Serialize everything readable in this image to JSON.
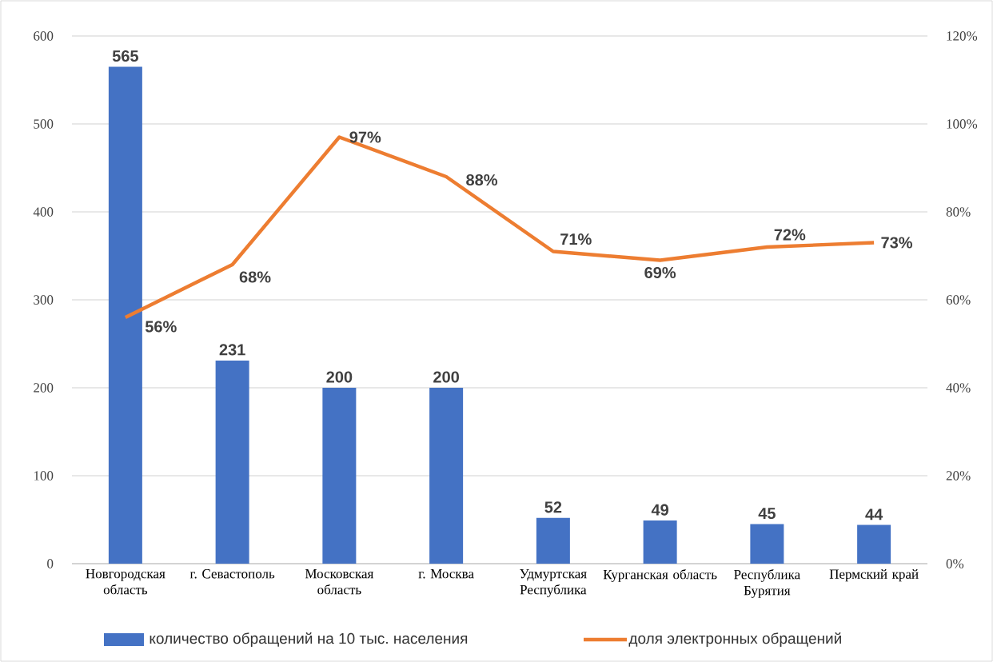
{
  "chart_data": {
    "type": "bar",
    "categories": [
      "Новгородская область",
      "г. Севастополь",
      "Московская область",
      "г. Москва",
      "Удмуртская Республика",
      "Курганская область",
      "Республика Бурятия",
      "Пермский край"
    ],
    "series": [
      {
        "name": "количество обращений на 10 тыс. населения",
        "color": "#4472c4",
        "values": [
          565,
          231,
          200,
          200,
          52,
          49,
          45,
          44
        ],
        "value_labels": [
          "565",
          "231",
          "200",
          "200",
          "52",
          "49",
          "45",
          "44"
        ]
      },
      {
        "name": "доля электронных обращений",
        "type": "line",
        "axis": "y2",
        "color": "#ed7d31",
        "values": [
          56,
          68,
          97,
          88,
          71,
          69,
          72,
          73
        ],
        "value_labels": [
          "56%",
          "68%",
          "97%",
          "88%",
          "71%",
          "69%",
          "72%",
          "73%"
        ]
      }
    ],
    "ylim": [
      0,
      600
    ],
    "yticks": [
      0,
      100,
      200,
      300,
      400,
      500,
      600
    ],
    "y2lim": [
      0,
      120
    ],
    "y2ticks": [
      {
        "value": 0,
        "label": "0%"
      },
      {
        "value": 20,
        "label": "20%"
      },
      {
        "value": 40,
        "label": "40%"
      },
      {
        "value": 60,
        "label": "60%"
      },
      {
        "value": 80,
        "label": "80%"
      },
      {
        "value": 100,
        "label": "100%"
      },
      {
        "value": 120,
        "label": "120%"
      }
    ],
    "grid": "y",
    "legend": "bottom",
    "marker": "none",
    "line_style": "solid"
  }
}
